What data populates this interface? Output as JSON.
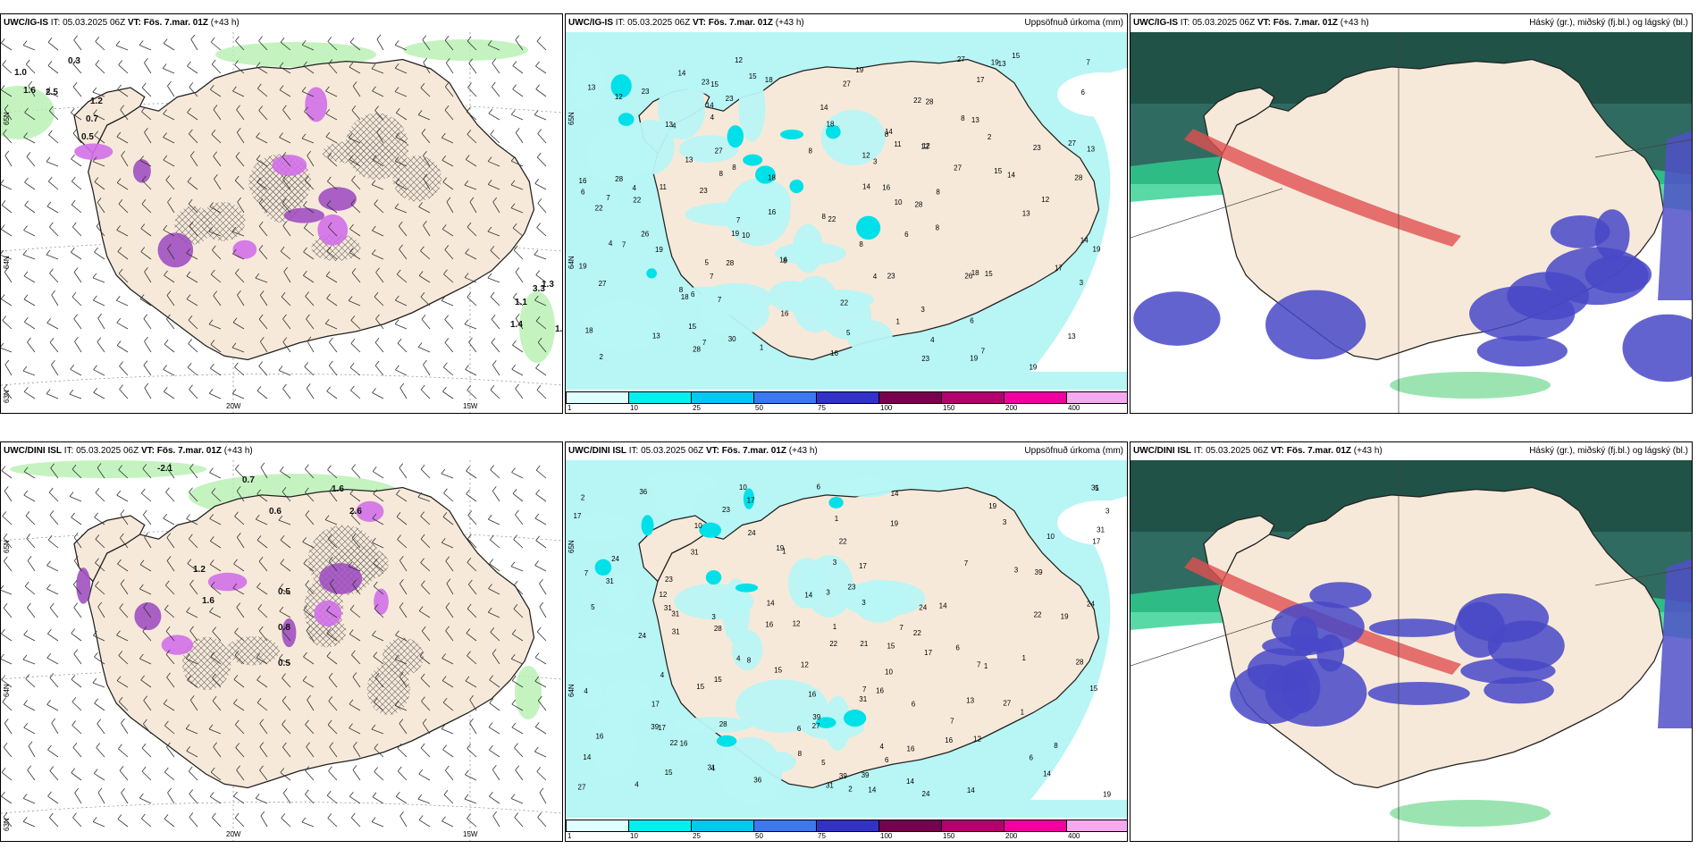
{
  "panels": [
    {
      "id": "p1",
      "source": "UWC/IG-IS",
      "it_label": "IT:",
      "it_value": "05.03.2025 06Z",
      "vt_label": "VT:",
      "vt_value": "Fös. 7.mar. 01Z",
      "lead": "(+43 h)",
      "right_title": ""
    },
    {
      "id": "p2",
      "source": "UWC/IG-IS",
      "it_label": "IT:",
      "it_value": "05.03.2025 06Z",
      "vt_label": "VT:",
      "vt_value": "Fös. 7.mar. 01Z",
      "lead": "(+43 h)",
      "right_title": "Uppsöfnuð úrkoma (mm)"
    },
    {
      "id": "p3",
      "source": "UWC/IG-IS",
      "it_label": "IT:",
      "it_value": "05.03.2025 06Z",
      "vt_label": "VT:",
      "vt_value": "Fös. 7.mar. 01Z",
      "lead": "(+43 h)",
      "right_title": "Háský (gr.), miðský (fj.bl.) og lágský (bl.)"
    },
    {
      "id": "p4",
      "source": "UWC/DINI ISL",
      "it_label": "IT:",
      "it_value": "05.03.2025 06Z",
      "vt_label": "VT:",
      "vt_value": "Fös. 7.mar. 01Z",
      "lead": "(+43 h)",
      "right_title": ""
    },
    {
      "id": "p5",
      "source": "UWC/DINI ISL",
      "it_label": "IT:",
      "it_value": "05.03.2025 06Z",
      "vt_label": "VT:",
      "vt_value": "Fös. 7.mar. 01Z",
      "lead": "(+43 h)",
      "right_title": "Uppsöfnuð úrkoma (mm)"
    },
    {
      "id": "p6",
      "source": "UWC/DINI ISL",
      "it_label": "IT:",
      "it_value": "05.03.2025 06Z",
      "vt_label": "VT:",
      "vt_value": "Fös. 7.mar. 01Z",
      "lead": "(+43 h)",
      "right_title": "Háský (gr.), miðský (fj.bl.) og lágský (bl.)"
    }
  ],
  "axes": {
    "lon_20w": "20W",
    "lon_15w": "15W",
    "lat_65n": "65N",
    "lat_64n": "64N",
    "lat_63n": "63N",
    "lat_66n": "66N"
  },
  "colorbar": {
    "ticks": [
      "1",
      "10",
      "25",
      "50",
      "75",
      "100",
      "150",
      "200",
      "400"
    ],
    "colors": [
      "#e0ffff",
      "#00f0f0",
      "#00c8f0",
      "#3c78f0",
      "#3232c8",
      "#780050",
      "#b4006e",
      "#f000a0",
      "#f5aaf0"
    ]
  },
  "precip_labels_top": [
    "15",
    "14",
    "16",
    "18",
    "23",
    "30",
    "10",
    "12",
    "27",
    "19",
    "28",
    "17",
    "11",
    "22",
    "14",
    "13",
    "26",
    "18",
    "8",
    "7",
    "6",
    "5",
    "4",
    "3",
    "2",
    "1"
  ],
  "precip_labels_bottom": [
    "39",
    "36",
    "24",
    "23",
    "19",
    "31",
    "17",
    "12",
    "10",
    "22",
    "15",
    "13",
    "14",
    "27",
    "28",
    "21",
    "16",
    "8",
    "7",
    "6",
    "5",
    "4",
    "3",
    "2",
    "1"
  ],
  "snow_labels_top": [
    "0.3",
    "1.0",
    "1.6",
    "2.5",
    "1.2",
    "0.7",
    "0.5",
    "3.3",
    "1.3",
    "1.1",
    "1.4",
    "1.1"
  ],
  "snow_labels_bottom": [
    "-2.1",
    "0.7",
    "1.6",
    "2.6",
    "0.6",
    "1.2",
    "1.6",
    "0.5",
    "0.8",
    "0.5"
  ],
  "map_colors": {
    "land": "#f7e9d9",
    "sea_precip": "#b8f5f5",
    "sea_cloud": "#ffffff"
  }
}
